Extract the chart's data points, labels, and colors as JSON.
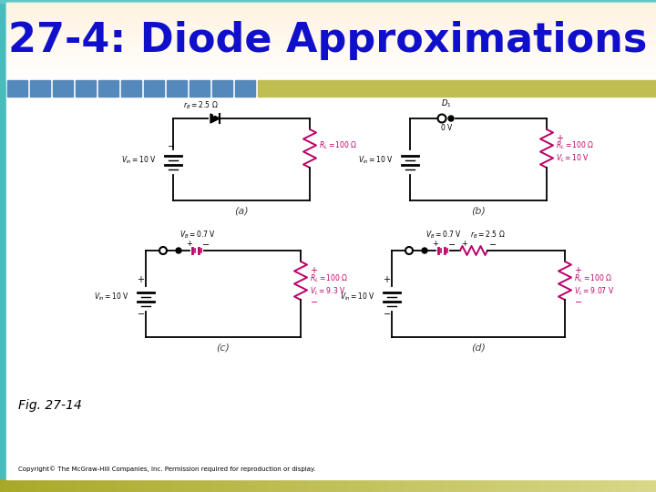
{
  "title": "27-4: Diode Approximations",
  "title_color": "#1010CC",
  "title_fontsize": 32,
  "fig_caption": "Fig. 27-14",
  "copyright_text": "Copyright© The McGraw-Hill Companies, Inc. Permission required for reproduction or display.",
  "bg_color": "#FFFFFF",
  "circuit_color": "#000000",
  "resistor_color": "#BB0066",
  "sub_label_a": "(a)",
  "sub_label_b": "(b)",
  "sub_label_c": "(c)",
  "sub_label_d": "(d)",
  "tile_color": "#5588BB",
  "olive_color": "#B8B840",
  "teal_color": "#50C0C0",
  "bottom_bar_left": "#A8A830",
  "bottom_bar_right": "#D8D890"
}
